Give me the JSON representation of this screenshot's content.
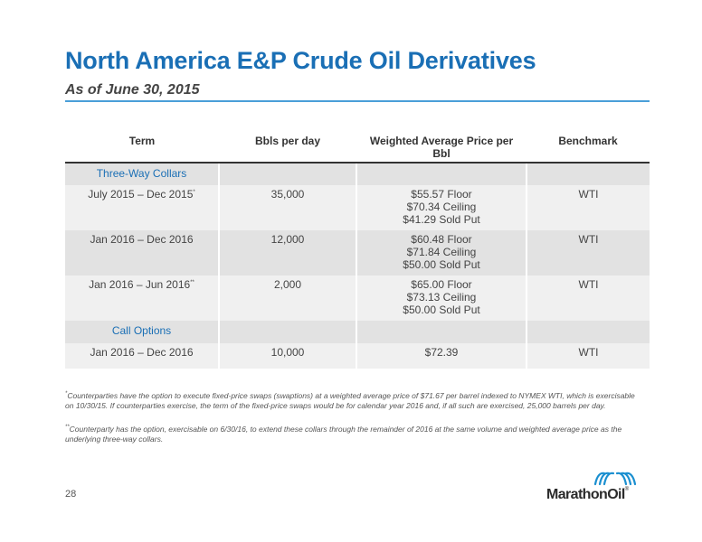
{
  "header": {
    "title": "North America E&P Crude Oil Derivatives",
    "subtitle": "As of June 30, 2015"
  },
  "table": {
    "columns": [
      "Term",
      "Bbls per day",
      "Weighted Average Price per Bbl",
      "Benchmark"
    ],
    "sections": [
      {
        "label": "Three-Way Collars",
        "rows": [
          {
            "term": "July 2015 – Dec 2015",
            "mark": "*",
            "bbls": "35,000",
            "price": [
              "$55.57 Floor",
              "$70.34 Ceiling",
              "$41.29 Sold Put"
            ],
            "benchmark": "WTI"
          },
          {
            "term": "Jan 2016 – Dec 2016",
            "mark": "",
            "bbls": "12,000",
            "price": [
              "$60.48 Floor",
              "$71.84 Ceiling",
              "$50.00 Sold Put"
            ],
            "benchmark": "WTI"
          },
          {
            "term": "Jan 2016 – Jun 2016",
            "mark": "**",
            "bbls": "2,000",
            "price": [
              "$65.00 Floor",
              "$73.13 Ceiling",
              "$50.00 Sold Put"
            ],
            "benchmark": "WTI"
          }
        ]
      },
      {
        "label": "Call Options",
        "rows": [
          {
            "term": "Jan 2016 – Dec 2016",
            "mark": "",
            "bbls": "10,000",
            "price": [
              "$72.39"
            ],
            "benchmark": "WTI"
          }
        ]
      }
    ]
  },
  "footnotes": {
    "fn1_mark": "*",
    "fn1_text": "Counterparties have the option to execute fixed-price swaps (swaptions) at a weighted average price of $71.67 per barrel indexed to NYMEX WTI, which is exercisable on 10/30/15. If counterparties exercise, the term of the fixed-price swaps would be for calendar year 2016 and, if all such are exercised, 25,000 barrels per day.",
    "fn2_mark": "**",
    "fn2_text": "Counterparty has the option, exercisable on 6/30/16, to extend these collars through the remainder of 2016 at the same volume and weighted average price as the underlying three-way collars."
  },
  "page_number": "28",
  "logo": {
    "name": "MarathonOil",
    "reg": "®",
    "mark_color": "#1a8fd0",
    "icon": "marathon-waves-icon"
  },
  "colors": {
    "accent": "#1a6fb5",
    "rule": "#4a9fd8"
  }
}
